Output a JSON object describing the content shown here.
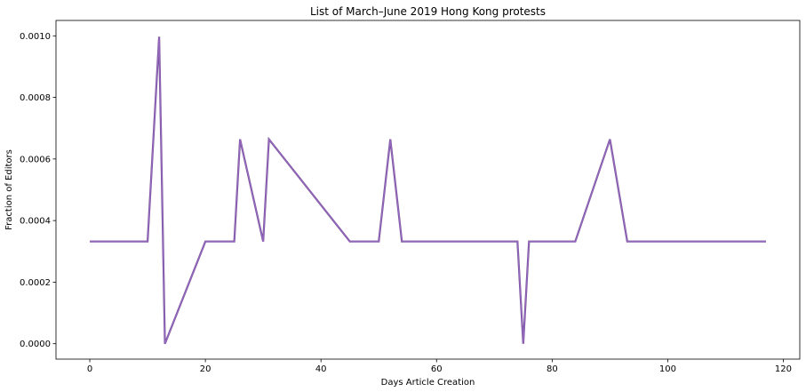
{
  "chart_data": {
    "type": "line",
    "title": "List of March–June 2019 Hong Kong protests",
    "xlabel": "Days Article Creation",
    "ylabel": "Fraction of Editors",
    "xlim": [
      -5.85,
      122.85
    ],
    "ylim": [
      -5e-05,
      0.00105
    ],
    "xticks": [
      0,
      20,
      40,
      60,
      80,
      100,
      120
    ],
    "xtick_labels": [
      "0",
      "20",
      "40",
      "60",
      "80",
      "100",
      "120"
    ],
    "yticks": [
      0.0,
      0.0002,
      0.0004,
      0.0006,
      0.0008,
      0.001
    ],
    "ytick_labels": [
      "0.0000",
      "0.0002",
      "0.0004",
      "0.0006",
      "0.0008",
      "0.0010"
    ],
    "grid": false,
    "legend": "none",
    "line_color": "#9467bd",
    "series": [
      {
        "x": [
          0,
          10,
          12,
          13,
          20,
          25,
          26,
          30,
          31,
          45,
          50,
          52,
          54,
          74,
          75,
          76,
          84,
          90,
          93,
          99,
          117
        ],
        "values": [
          0.000332,
          0.000332,
          0.000997,
          0.0,
          0.000332,
          0.000332,
          0.000664,
          0.000332,
          0.000664,
          0.000332,
          0.000332,
          0.000664,
          0.000332,
          0.000332,
          0.0,
          0.000332,
          0.000332,
          0.000664,
          0.000332,
          0.000332,
          0.000332
        ]
      }
    ]
  }
}
